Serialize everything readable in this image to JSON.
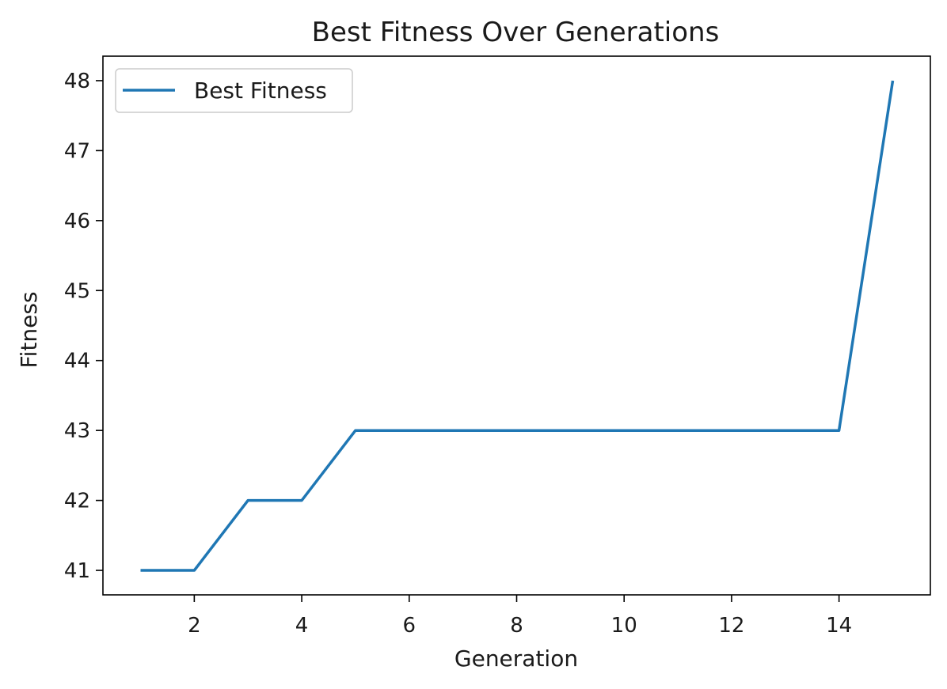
{
  "chart_data": {
    "type": "line",
    "title": "Best Fitness Over Generations",
    "xlabel": "Generation",
    "ylabel": "Fitness",
    "xlim": [
      0.3,
      15.7
    ],
    "ylim": [
      40.65,
      48.35
    ],
    "xticks": [
      2,
      4,
      6,
      8,
      10,
      12,
      14
    ],
    "yticks": [
      41,
      42,
      43,
      44,
      45,
      46,
      47,
      48
    ],
    "grid": false,
    "legend": "upper-left",
    "series": [
      {
        "name": "Best Fitness",
        "color": "#1f77b4",
        "x": [
          1,
          2,
          3,
          4,
          5,
          6,
          7,
          8,
          9,
          10,
          11,
          12,
          13,
          14,
          15
        ],
        "y": [
          41,
          41,
          42,
          42,
          43,
          43,
          43,
          43,
          43,
          43,
          43,
          43,
          43,
          43,
          48
        ]
      }
    ]
  }
}
